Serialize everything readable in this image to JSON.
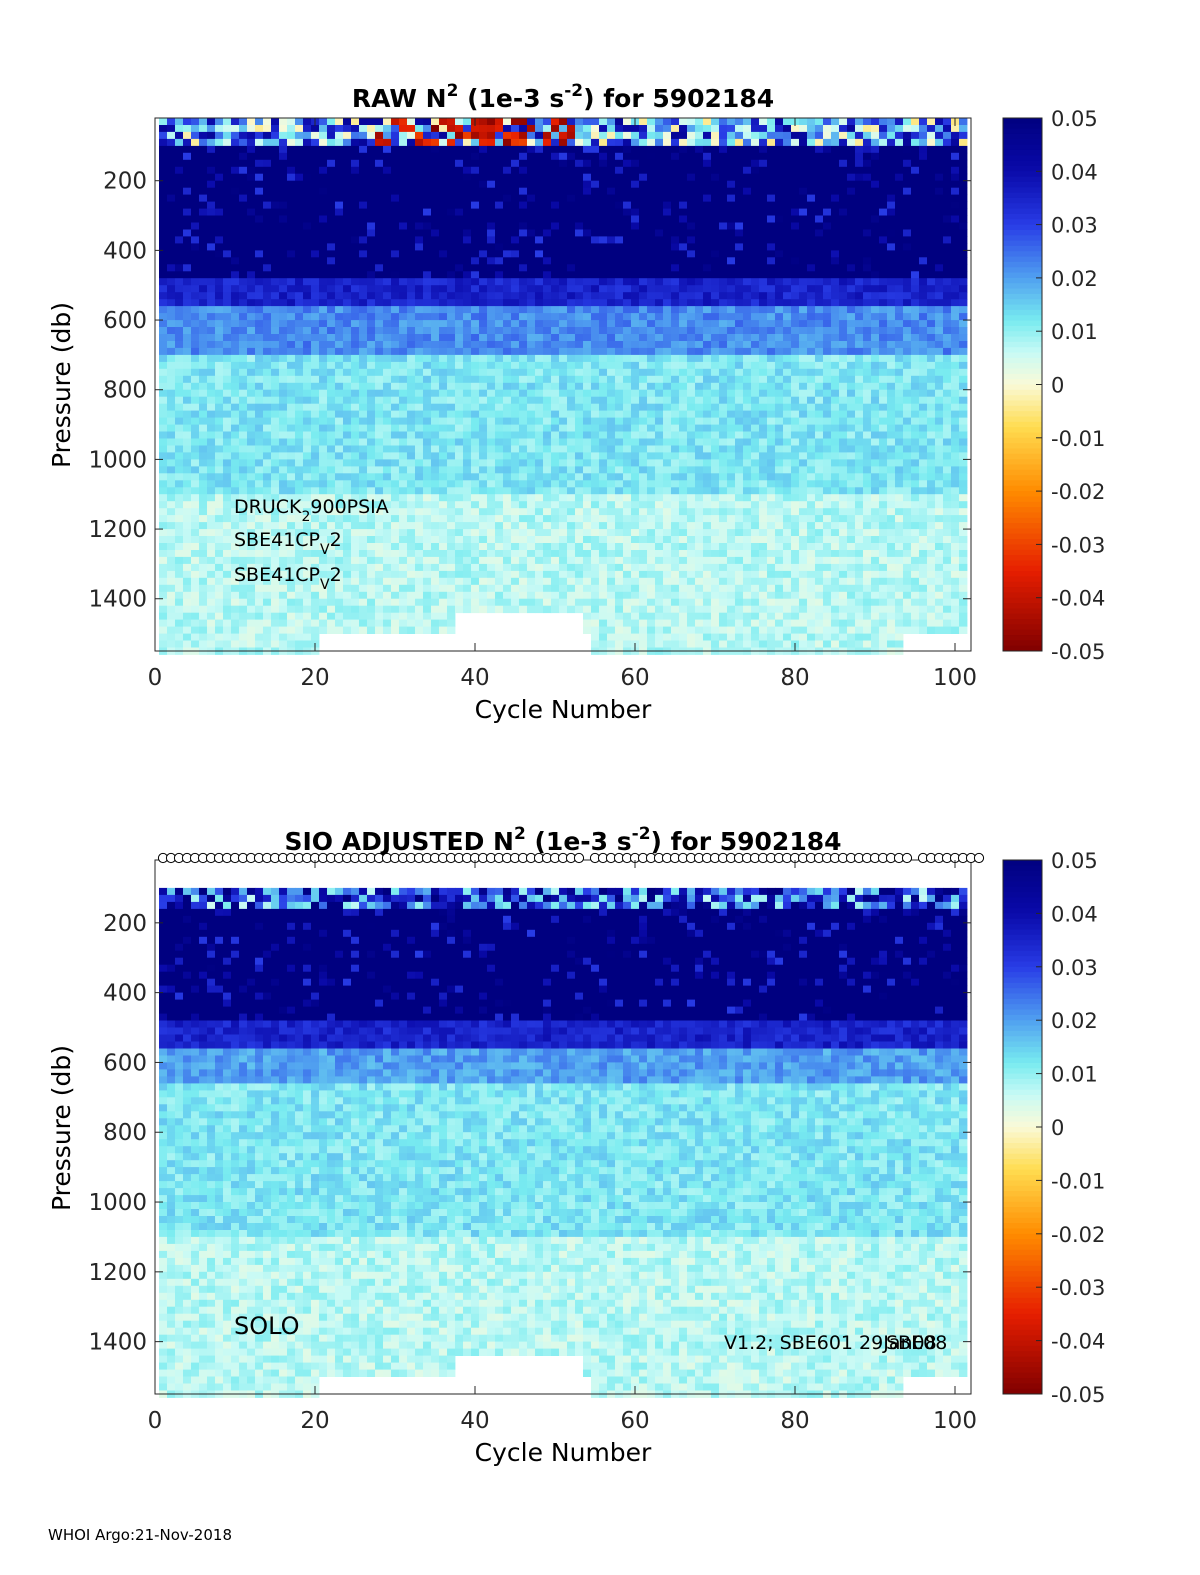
{
  "footer": "WHOI Argo:21-Nov-2018",
  "colorbar": {
    "ticks": [
      "0.05",
      "0.04",
      "0.03",
      "0.02",
      "0.01",
      "0",
      "-0.01",
      "-0.02",
      "-0.03",
      "-0.04",
      "-0.05"
    ],
    "colormap": "blue-cyan-white-yellow-red",
    "colors": {
      "pos_max": "#000080",
      "pos_mid": "#3c6ef0",
      "pos_low": "#80f0f0",
      "zero": "#f5f5dc",
      "neg_low": "#ffa500",
      "neg_high": "#8b0000"
    }
  },
  "chart_data": [
    {
      "type": "heatmap",
      "title": "RAW N² (1e-3 s⁻²) for 5902184",
      "title_parts": {
        "pre": "RAW N",
        "sup1": "2",
        "mid": " (1e-3 s",
        "sup2": "-2",
        "post": ") for 5902184"
      },
      "xlabel": "Cycle Number",
      "ylabel": "Pressure (db)",
      "xlim": [
        0,
        102
      ],
      "ylim": [
        1550,
        20
      ],
      "xticks": [
        "0",
        "20",
        "40",
        "60",
        "80",
        "100"
      ],
      "yticks": [
        "200",
        "400",
        "600",
        "800",
        "1000",
        "1200",
        "1400"
      ],
      "clim": [
        -0.05,
        0.05
      ],
      "annotations": [
        {
          "pre": "DRUCK",
          "sub": "2",
          "post": "900PSIA"
        },
        {
          "pre": "SBE41CP",
          "sub": "V",
          "post": "2"
        },
        {
          "pre": "SBE41CP",
          "sub": "V",
          "post": "2"
        }
      ],
      "layers": [
        {
          "p_top": 20,
          "p_bottom": 100,
          "mean_value": 0.02,
          "note": "near-surface mixed values incl. negative near cycles 30-50"
        },
        {
          "p_top": 100,
          "p_bottom": 480,
          "mean_value": 0.05
        },
        {
          "p_top": 480,
          "p_bottom": 560,
          "mean_value": 0.035
        },
        {
          "p_top": 560,
          "p_bottom": 700,
          "mean_value": 0.022
        },
        {
          "p_top": 700,
          "p_bottom": 1100,
          "mean_value": 0.012
        },
        {
          "p_top": 1100,
          "p_bottom": 1550,
          "mean_value": 0.007
        }
      ],
      "missing_regions": [
        {
          "cycles": [
            21,
            54
          ],
          "p_top": 1490,
          "p_bottom": 1550
        },
        {
          "cycles": [
            38,
            53
          ],
          "p_top": 1430,
          "p_bottom": 1490
        },
        {
          "cycles": [
            94,
            101
          ],
          "p_top": 1490,
          "p_bottom": 1550
        }
      ]
    },
    {
      "type": "heatmap",
      "title": "SIO ADJUSTED N² (1e-3 s⁻²) for 5902184",
      "title_parts": {
        "pre": "SIO  ADJUSTED N",
        "sup1": "2",
        "mid": " (1e-3 s",
        "sup2": "-2",
        "post": ") for 5902184"
      },
      "xlabel": "Cycle Number",
      "ylabel": "Pressure (db)",
      "xlim": [
        0,
        102
      ],
      "ylim": [
        1550,
        20
      ],
      "xticks": [
        "0",
        "20",
        "40",
        "60",
        "80",
        "100"
      ],
      "yticks": [
        "200",
        "400",
        "600",
        "800",
        "1000",
        "1200",
        "1400"
      ],
      "clim": [
        -0.05,
        0.05
      ],
      "annotation_left": "SOLO",
      "annotation_right": "V1.2; SBE601 29Jan08",
      "annotation_overlap": "SBE08",
      "qc_markers": "circles along top axis for each cycle",
      "layers": [
        {
          "p_top": 100,
          "p_bottom": 150,
          "mean_value": 0.03
        },
        {
          "p_top": 150,
          "p_bottom": 480,
          "mean_value": 0.05
        },
        {
          "p_top": 480,
          "p_bottom": 560,
          "mean_value": 0.035
        },
        {
          "p_top": 560,
          "p_bottom": 660,
          "mean_value": 0.02
        },
        {
          "p_top": 660,
          "p_bottom": 1100,
          "mean_value": 0.012
        },
        {
          "p_top": 1100,
          "p_bottom": 1550,
          "mean_value": 0.007
        }
      ],
      "missing_regions": [
        {
          "cycles": [
            21,
            54
          ],
          "p_top": 1490,
          "p_bottom": 1550
        },
        {
          "cycles": [
            38,
            53
          ],
          "p_top": 1430,
          "p_bottom": 1490
        },
        {
          "cycles": [
            94,
            101
          ],
          "p_top": 1490,
          "p_bottom": 1550
        }
      ]
    }
  ]
}
